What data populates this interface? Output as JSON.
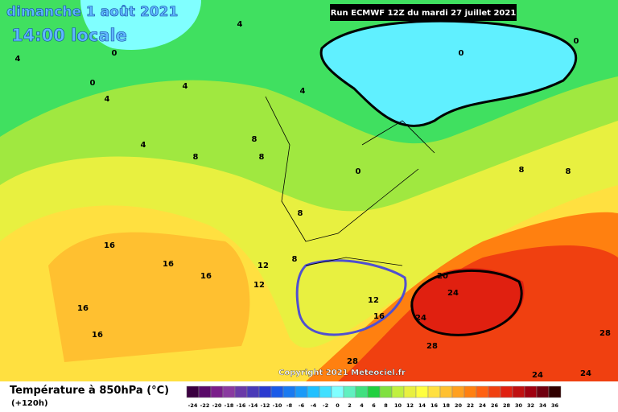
{
  "header": {
    "date": "dimanche 1 août 2021",
    "time": "14:00 locale",
    "run": "Run ECMWF 12Z du mardi 27 juillet 2021",
    "copyright": "Copyright 2021 Meteociel.fr"
  },
  "legend": {
    "title": "Température à 850hPa (°C)",
    "lead": "(+120h)",
    "values": [
      -24,
      -22,
      -20,
      -18,
      -16,
      -14,
      -12,
      -10,
      -8,
      -6,
      -4,
      -2,
      0,
      2,
      4,
      6,
      8,
      10,
      12,
      14,
      16,
      18,
      20,
      22,
      24,
      26,
      28,
      30,
      32,
      34,
      36
    ],
    "colors": [
      "#3a0040",
      "#5a0a6a",
      "#7a1e8a",
      "#8a3aa0",
      "#6a3aa8",
      "#4a3ab8",
      "#2a3ad0",
      "#1a5ae8",
      "#1a7af0",
      "#1a9af8",
      "#20c0ff",
      "#40e0ff",
      "#80ffff",
      "#60f0c0",
      "#40e080",
      "#20d040",
      "#80e040",
      "#c0f040",
      "#e8f040",
      "#ffff40",
      "#ffe040",
      "#ffc030",
      "#ffa020",
      "#ff8010",
      "#ff6010",
      "#f04010",
      "#e02010",
      "#c01010",
      "#a00010",
      "#700010",
      "#300000"
    ]
  },
  "contour_labels": [
    4,
    0,
    4,
    4,
    0,
    4,
    4,
    4,
    8,
    8,
    8,
    0,
    8,
    8,
    16,
    16,
    16,
    12,
    12,
    16,
    16,
    20,
    24,
    12,
    16,
    24,
    28,
    28,
    28,
    0,
    0,
    8,
    8,
    24,
    24
  ]
}
